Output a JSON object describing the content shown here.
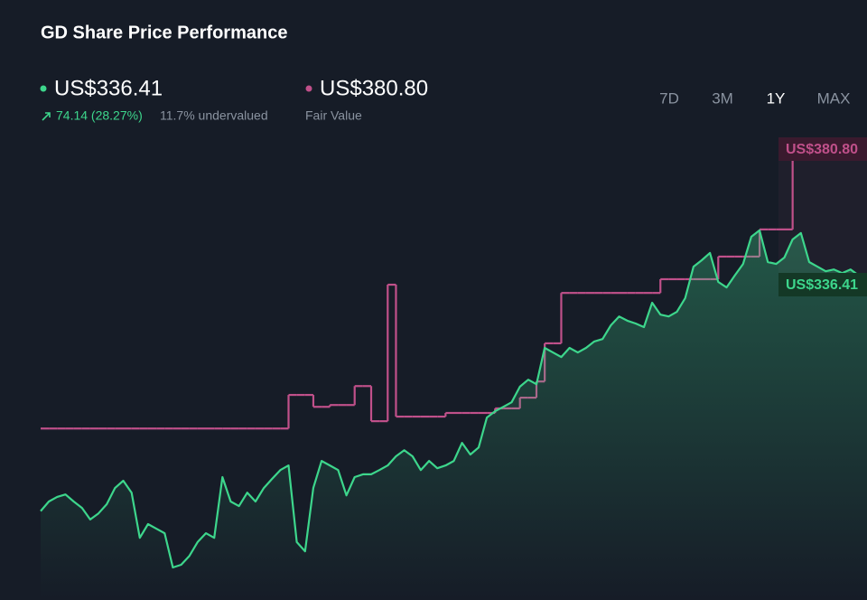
{
  "header": {
    "title": "GD Share Price Performance"
  },
  "price": {
    "value_label": "US$336.41",
    "change": "74.14 (28.27%)",
    "undervalued": "11.7% undervalued"
  },
  "fair_value": {
    "value_label": "US$380.80",
    "label": "Fair Value"
  },
  "ranges": [
    "7D",
    "3M",
    "1Y",
    "MAX"
  ],
  "selected_range": "1Y",
  "chart_data": {
    "type": "line",
    "series": [
      {
        "color": "#3dd68c",
        "end_label": "US$336.41",
        "values": [
          262.27,
          265.4,
          266.9,
          267.7,
          265.4,
          263.3,
          259.5,
          261.5,
          264.5,
          269.8,
          272.2,
          268.3,
          253.5,
          258.0,
          256.5,
          255.0,
          243.8,
          244.7,
          247.6,
          252.1,
          255.0,
          253.5,
          273.4,
          265.4,
          263.9,
          268.3,
          265.4,
          269.8,
          272.8,
          275.7,
          277.2,
          252.1,
          249.1,
          269.8,
          278.7,
          277.2,
          275.7,
          267.4,
          273.4,
          274.3,
          274.3,
          275.7,
          277.2,
          280.2,
          282.2,
          280.2,
          275.7,
          278.7,
          276.3,
          277.2,
          278.7,
          284.6,
          280.8,
          283.1,
          292.9,
          295.0,
          296.4,
          297.9,
          303.0,
          305.3,
          303.8,
          315.7,
          314.2,
          312.7,
          315.7,
          314.2,
          315.7,
          317.8,
          318.6,
          323.1,
          326.0,
          324.6,
          323.7,
          322.5,
          330.5,
          326.6,
          326.0,
          327.5,
          332.0,
          342.3,
          344.4,
          346.8,
          337.3,
          335.5,
          339.4,
          343.2,
          352.1,
          354.2,
          343.8,
          343.2,
          345.3,
          351.2,
          353.3,
          343.8,
          342.3,
          340.8,
          341.4,
          340.2,
          341.4,
          339.4,
          336.41
        ]
      },
      {
        "name": "Fair Value",
        "color": "#c0508a",
        "end_label": "US$380.80",
        "values": [
          289.3,
          289.3,
          289.3,
          289.3,
          289.3,
          289.3,
          289.3,
          289.3,
          289.3,
          289.3,
          289.3,
          289.3,
          289.3,
          289.3,
          289.3,
          289.3,
          289.3,
          289.3,
          289.3,
          289.3,
          289.3,
          289.3,
          289.3,
          289.3,
          289.3,
          289.3,
          289.3,
          289.3,
          289.3,
          289.3,
          300.3,
          300.3,
          300.3,
          296.4,
          296.4,
          297.0,
          297.0,
          297.0,
          303.2,
          303.2,
          291.7,
          291.7,
          336.4,
          293.2,
          293.2,
          293.2,
          293.2,
          293.2,
          293.2,
          294.4,
          294.4,
          294.4,
          294.4,
          294.4,
          294.4,
          295.9,
          295.9,
          295.9,
          299.4,
          299.4,
          304.7,
          317.2,
          317.2,
          333.7,
          333.7,
          333.7,
          333.7,
          333.7,
          333.7,
          333.7,
          333.7,
          333.7,
          333.7,
          333.7,
          333.7,
          338.2,
          338.2,
          338.2,
          338.2,
          338.2,
          338.2,
          338.2,
          345.6,
          345.6,
          345.6,
          345.6,
          345.6,
          354.5,
          354.5,
          354.5,
          354.5,
          380.8,
          380.8,
          380.8,
          380.8,
          380.8,
          380.8,
          380.8,
          380.8,
          380.8,
          380.8
        ]
      }
    ]
  }
}
